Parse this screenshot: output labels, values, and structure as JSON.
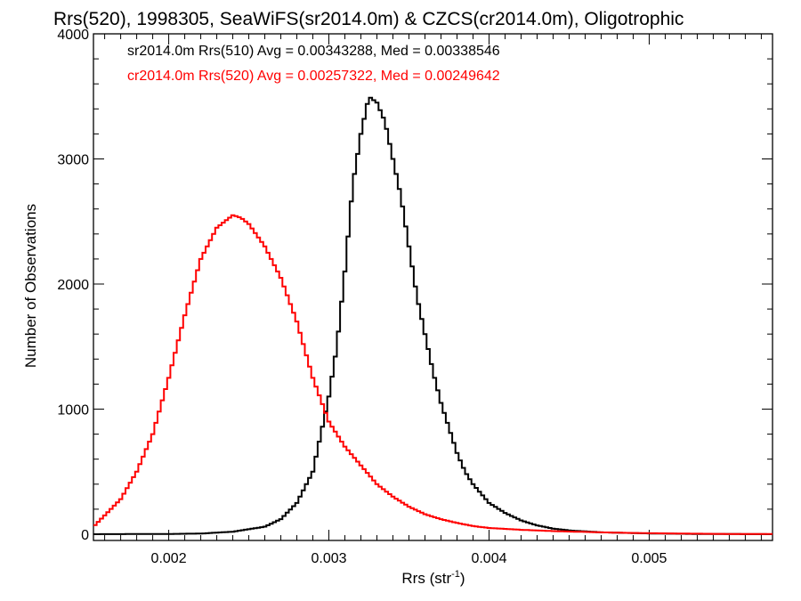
{
  "chart_data": {
    "type": "line",
    "title": "Rrs(520), 1998305, SeaWiFS(sr2014.0m) & CZCS(cr2014.0m), Oligotrophic",
    "xlabel": "Rrs (str",
    "xlabel_sup": "-1",
    "xlabel_close": ")",
    "ylabel": "Number of Observations",
    "xlim": [
      0.00153,
      0.00577
    ],
    "ylim": [
      -50,
      4000
    ],
    "xticks": [
      0.002,
      0.003,
      0.004,
      0.005
    ],
    "xtick_labels": [
      "0.002",
      "0.003",
      "0.004",
      "0.005"
    ],
    "yticks": [
      0,
      1000,
      2000,
      3000,
      4000
    ],
    "ytick_labels": [
      "0",
      "1000",
      "2000",
      "3000",
      "4000"
    ],
    "legend": [
      {
        "text": "sr2014.0m Rrs(510) Avg = 0.00343288, Med = 0.00338546",
        "color": "#000000"
      },
      {
        "text": "cr2014.0m Rrs(520) Avg = 0.00257322, Med = 0.00249642",
        "color": "#ff0000"
      }
    ],
    "series": [
      {
        "color": "#000000",
        "x": [
          0.00153,
          0.002,
          0.0022,
          0.0024,
          0.0026,
          0.0027,
          0.0028,
          0.0029,
          0.00295,
          0.003,
          0.00305,
          0.0031,
          0.00315,
          0.0032,
          0.00325,
          0.0033,
          0.00335,
          0.0034,
          0.00345,
          0.0035,
          0.00355,
          0.0036,
          0.00365,
          0.0037,
          0.00375,
          0.0038,
          0.00385,
          0.0039,
          0.004,
          0.0041,
          0.0042,
          0.0043,
          0.0044,
          0.0045,
          0.0047,
          0.005,
          0.0053,
          0.00577
        ],
        "y": [
          0,
          2,
          5,
          20,
          60,
          120,
          250,
          500,
          800,
          1100,
          1500,
          2100,
          2800,
          3200,
          3500,
          3450,
          3300,
          3000,
          2700,
          2300,
          1900,
          1600,
          1300,
          1050,
          850,
          650,
          500,
          400,
          250,
          170,
          110,
          70,
          45,
          30,
          15,
          6,
          2,
          0
        ]
      },
      {
        "color": "#ff0000",
        "x": [
          0.00153,
          0.0016,
          0.0017,
          0.0018,
          0.0019,
          0.002,
          0.0021,
          0.0022,
          0.0023,
          0.0024,
          0.00245,
          0.0025,
          0.0026,
          0.0027,
          0.0028,
          0.0029,
          0.003,
          0.0031,
          0.0032,
          0.0033,
          0.0034,
          0.0035,
          0.0036,
          0.0037,
          0.0038,
          0.0039,
          0.004,
          0.0042,
          0.0044,
          0.0046,
          0.0048,
          0.005,
          0.0052,
          0.0055,
          0.00577
        ],
        "y": [
          60,
          150,
          280,
          500,
          800,
          1250,
          1750,
          2200,
          2450,
          2550,
          2530,
          2480,
          2300,
          2050,
          1700,
          1250,
          900,
          700,
          550,
          400,
          300,
          220,
          160,
          120,
          90,
          65,
          50,
          35,
          25,
          18,
          12,
          8,
          5,
          2,
          1
        ]
      }
    ]
  }
}
